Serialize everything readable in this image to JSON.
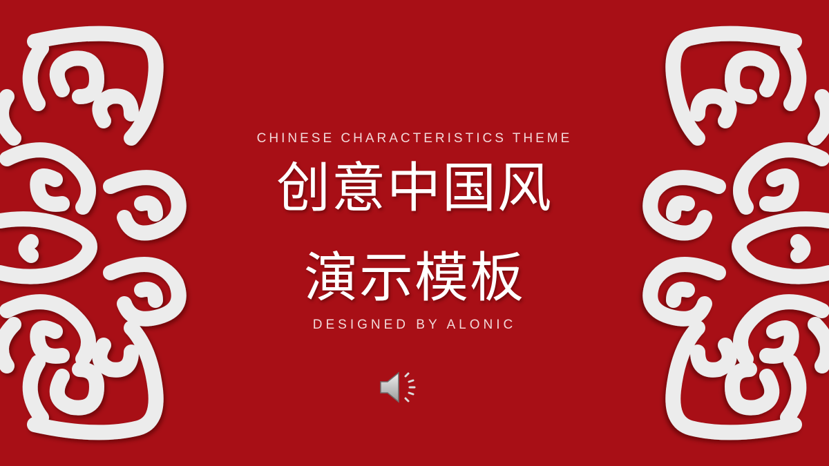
{
  "slide": {
    "subtitle_en": "CHINESE CHARACTERISTICS THEME",
    "title_line1": "创意中国风",
    "title_line2": "演示模板",
    "designer": "DESIGNED BY ALONIC"
  },
  "icons": {
    "audio": "speaker-icon",
    "ornament": "cloud-scroll-ornament"
  },
  "colors": {
    "background": "#a80f16",
    "ornament": "#eeeeee",
    "title": "#ffffff",
    "subtitle": "#f2d9d9"
  }
}
